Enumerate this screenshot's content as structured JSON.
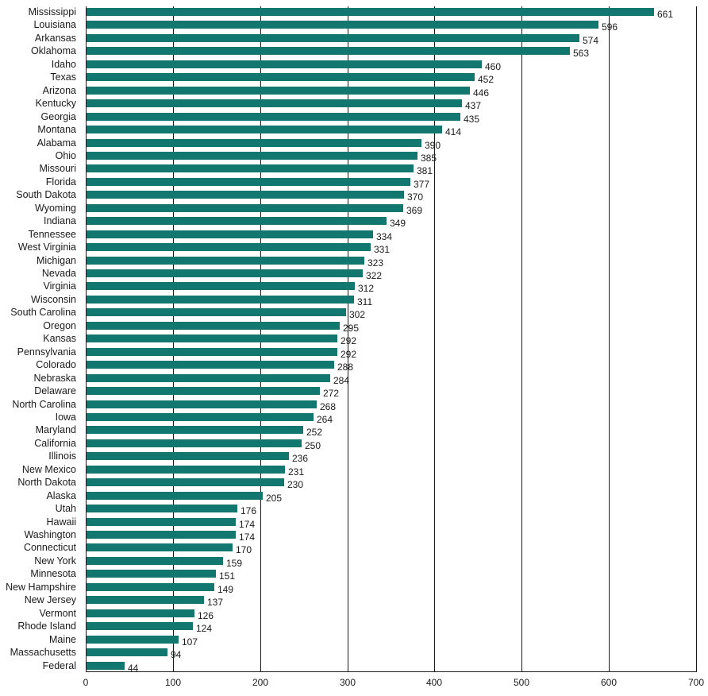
{
  "chart_data": {
    "type": "bar",
    "orientation": "horizontal",
    "title": "",
    "xlabel": "",
    "ylabel": "",
    "xlim": [
      0,
      700
    ],
    "x_ticks": [
      0,
      100,
      200,
      300,
      400,
      500,
      600,
      700
    ],
    "grid": "vertical gridlines at x ticks",
    "legend": "none",
    "bar_color": "#11776F",
    "categories": [
      "Mississippi",
      "Louisiana",
      "Arkansas",
      "Oklahoma",
      "Idaho",
      "Texas",
      "Arizona",
      "Kentucky",
      "Georgia",
      "Montana",
      "Alabama",
      "Ohio",
      "Missouri",
      "Florida",
      "South Dakota",
      "Wyoming",
      "Indiana",
      "Tennessee",
      "West Virginia",
      "Michigan",
      "Nevada",
      "Virginia",
      "Wisconsin",
      "South Carolina",
      "Oregon",
      "Kansas",
      "Pennsylvania",
      "Colorado",
      "Nebraska",
      "Delaware",
      "North Carolina",
      "Iowa",
      "Maryland",
      "California",
      "Illinois",
      "New Mexico",
      "North Dakota",
      "Alaska",
      "Utah",
      "Hawaii",
      "Washington",
      "Connecticut",
      "New York",
      "Minnesota",
      "New Hampshire",
      "New Jersey",
      "Vermont",
      "Rhode Island",
      "Maine",
      "Massachusetts",
      "Federal"
    ],
    "values": [
      661,
      596,
      574,
      563,
      460,
      452,
      446,
      437,
      435,
      414,
      390,
      385,
      381,
      377,
      370,
      369,
      349,
      334,
      331,
      323,
      322,
      312,
      311,
      302,
      295,
      292,
      292,
      288,
      284,
      272,
      268,
      264,
      252,
      250,
      236,
      231,
      230,
      205,
      176,
      174,
      174,
      170,
      159,
      151,
      149,
      137,
      126,
      124,
      107,
      94,
      44
    ]
  }
}
